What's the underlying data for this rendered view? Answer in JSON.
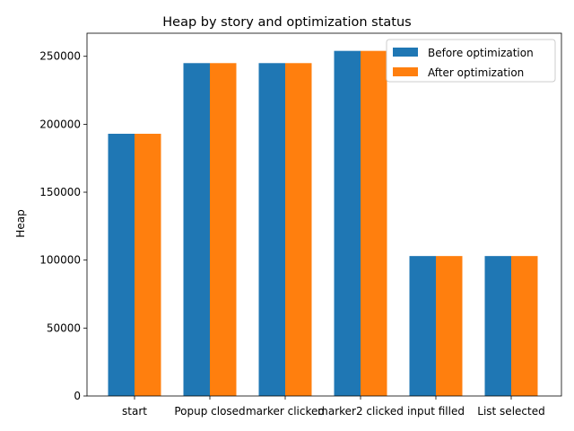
{
  "chart_data": {
    "type": "bar",
    "title": "Heap by story and optimization status",
    "xlabel": "",
    "ylabel": "Heap",
    "categories": [
      "start",
      "Popup closed",
      "marker clicked",
      "marker2 clicked",
      "input filled",
      "List selected"
    ],
    "series": [
      {
        "name": "Before optimization",
        "color": "#1f77b4",
        "values": [
          193000,
          245000,
          245000,
          254000,
          103000,
          103000
        ]
      },
      {
        "name": "After optimization",
        "color": "#ff7f0e",
        "values": [
          193000,
          245000,
          245000,
          254000,
          103000,
          103000
        ]
      }
    ],
    "ylim": [
      0,
      267000
    ],
    "yticks": [
      0,
      50000,
      100000,
      150000,
      200000,
      250000
    ],
    "grid": false,
    "legend_position": "top-right"
  }
}
